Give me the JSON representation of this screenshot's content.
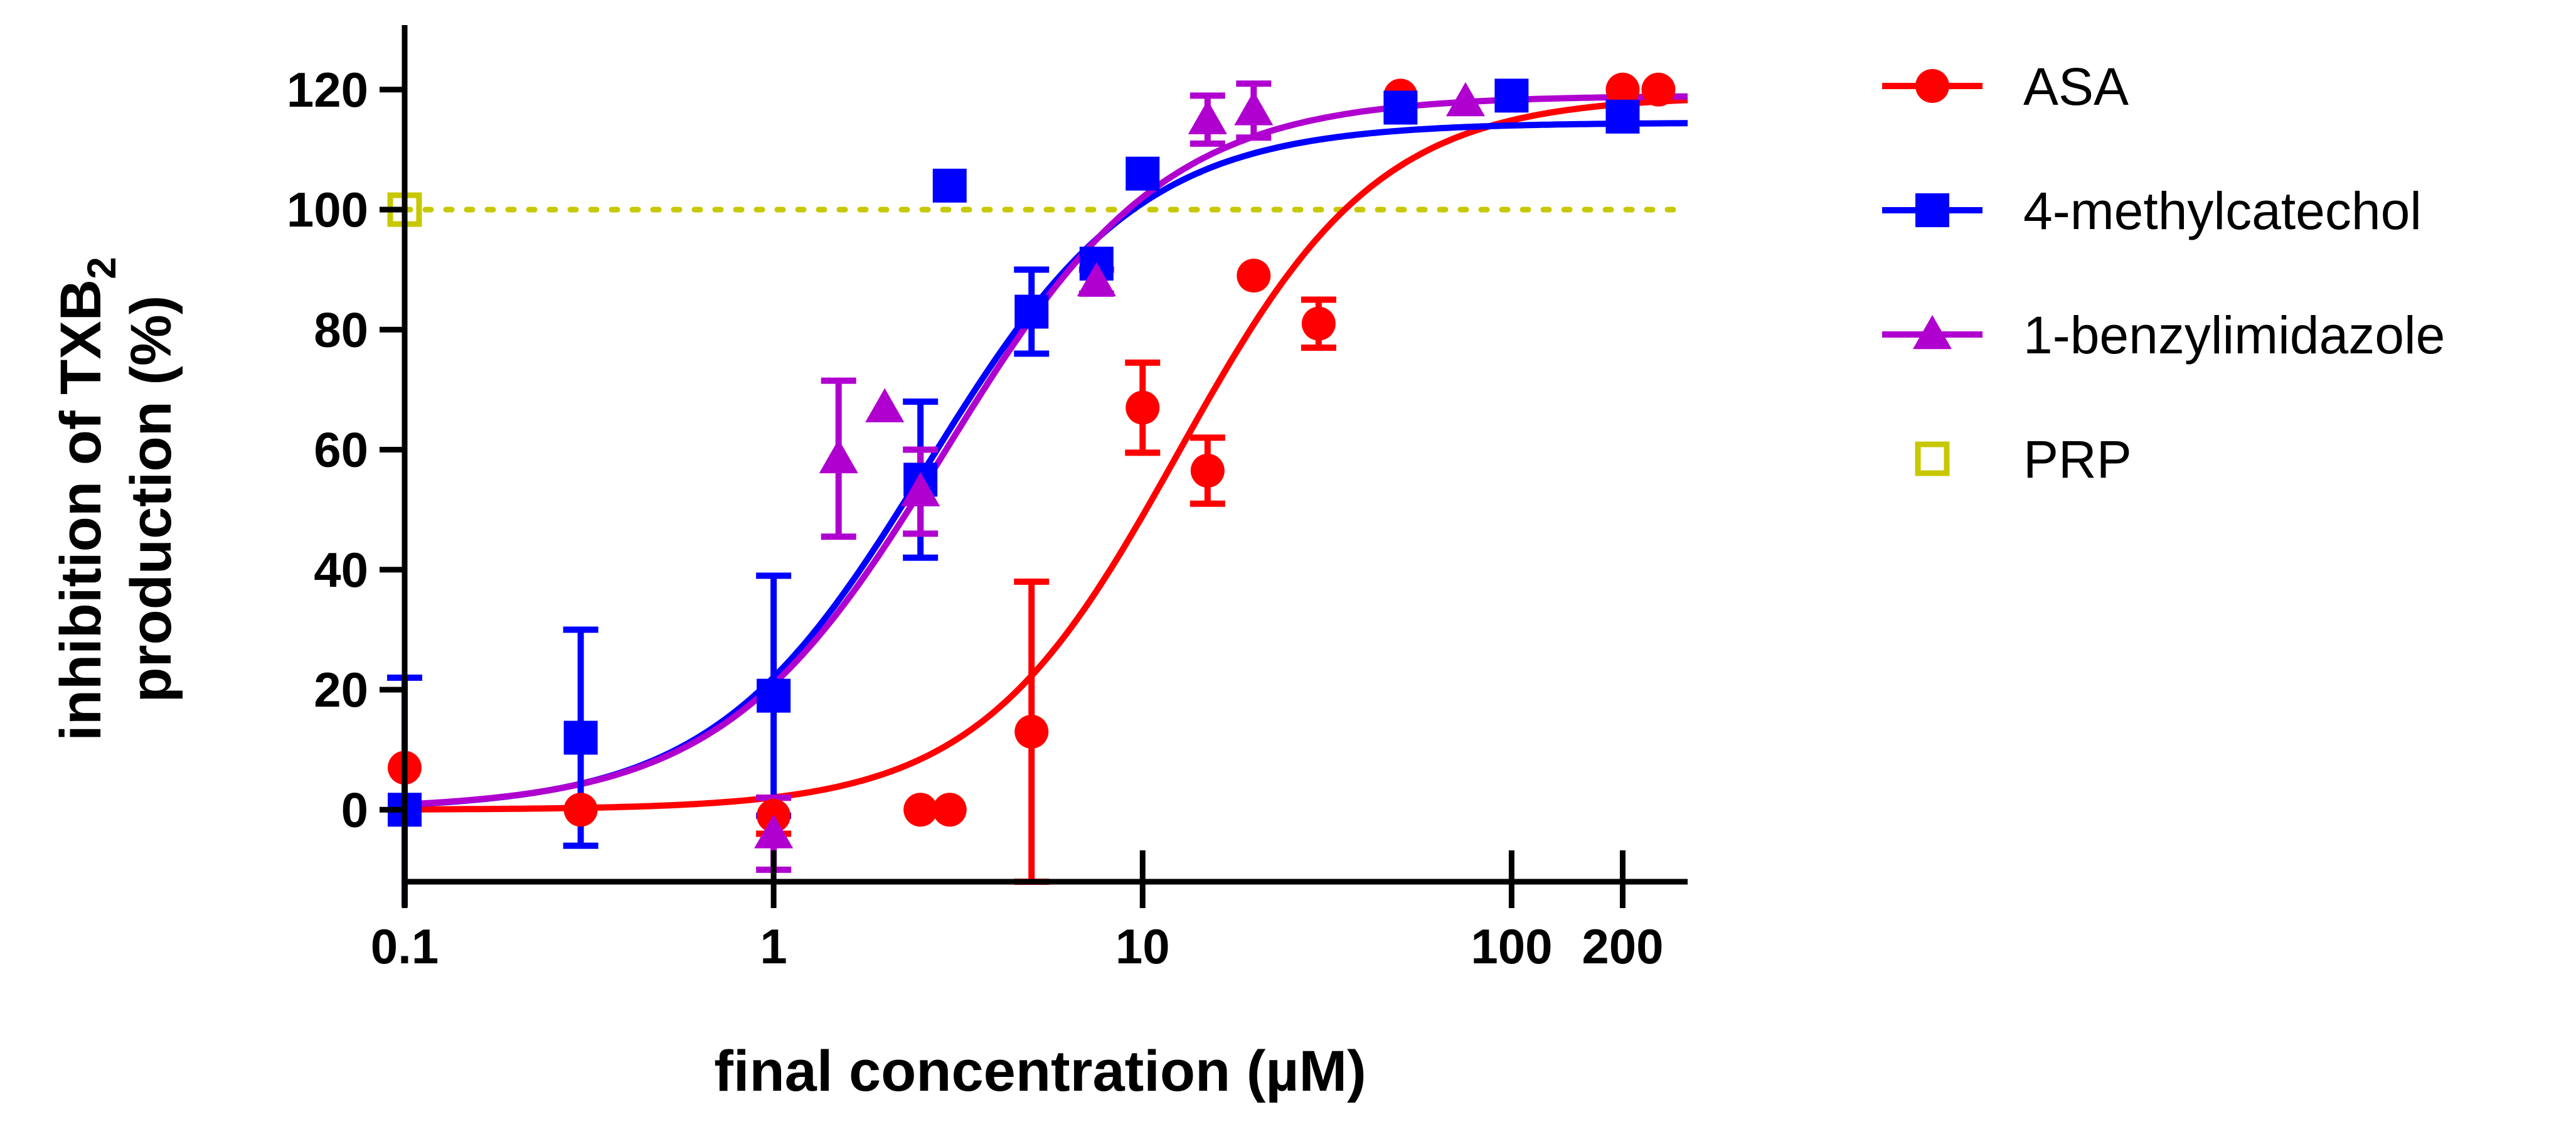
{
  "chart_data": {
    "type": "scatter",
    "xscale": "log",
    "xlim": [
      0.1,
      300
    ],
    "ylim": [
      -12,
      125
    ],
    "xticks": [
      {
        "value": 0.1,
        "label": "0.1"
      },
      {
        "value": 1,
        "label": "1"
      },
      {
        "value": 10,
        "label": "10"
      },
      {
        "value": 100,
        "label": "100"
      },
      {
        "value": 200,
        "label": "200"
      }
    ],
    "yticks": [
      {
        "value": 0,
        "label": "0"
      },
      {
        "value": 20,
        "label": "20"
      },
      {
        "value": 40,
        "label": "40"
      },
      {
        "value": 60,
        "label": "60"
      },
      {
        "value": 80,
        "label": "80"
      },
      {
        "value": 100,
        "label": "100"
      },
      {
        "value": 120,
        "label": "120"
      }
    ],
    "xlabel": "final concentration (µM)",
    "ylabel_line1": "inhibition of TXB",
    "ylabel_subscript": "2",
    "ylabel_line2": "production  (%)",
    "reference_line": {
      "y": 100,
      "color": "#c8c800",
      "style": "dotted"
    },
    "series": [
      {
        "name": "ASA",
        "color": "#ff0000",
        "marker": "circle",
        "fit": {
          "bottom": 0,
          "top": 119,
          "ec50": 12.5,
          "hill": 1.6
        },
        "points": [
          {
            "x": 0.1,
            "y": 7
          },
          {
            "x": 0.3,
            "y": 0
          },
          {
            "x": 1,
            "y": -1,
            "err": 3
          },
          {
            "x": 2.5,
            "y": 0
          },
          {
            "x": 3,
            "y": 0
          },
          {
            "x": 5,
            "y": 13,
            "err": 25
          },
          {
            "x": 10,
            "y": 67,
            "err": 7.5
          },
          {
            "x": 15,
            "y": 56.5,
            "err": 5.5
          },
          {
            "x": 20,
            "y": 89
          },
          {
            "x": 30,
            "y": 81,
            "err": 4
          },
          {
            "x": 50,
            "y": 119
          },
          {
            "x": 200,
            "y": 120
          },
          {
            "x": 250,
            "y": 120
          }
        ]
      },
      {
        "name": "4-methylcatechol",
        "color": "#0000ff",
        "marker": "square",
        "fit": {
          "bottom": 0,
          "top": 114.5,
          "ec50": 2.6,
          "hill": 1.5
        },
        "points": [
          {
            "x": 0.1,
            "y": 0,
            "err": 22
          },
          {
            "x": 0.3,
            "y": 12,
            "err": 18
          },
          {
            "x": 1,
            "y": 19,
            "err": 20
          },
          {
            "x": 2.5,
            "y": 55,
            "err": 13
          },
          {
            "x": 3,
            "y": 104
          },
          {
            "x": 5,
            "y": 83,
            "err": 7
          },
          {
            "x": 7.5,
            "y": 91
          },
          {
            "x": 10,
            "y": 106
          },
          {
            "x": 50,
            "y": 117
          },
          {
            "x": 100,
            "y": 119
          },
          {
            "x": 200,
            "y": 115.5
          }
        ]
      },
      {
        "name": "1-benzylimidazole",
        "color": "#b000d0",
        "marker": "triangle",
        "fit": {
          "bottom": 0,
          "top": 119,
          "ec50": 2.9,
          "hill": 1.45
        },
        "points": [
          {
            "x": 1,
            "y": -4,
            "err": 6
          },
          {
            "x": 1.5,
            "y": 58.5,
            "err": 13
          },
          {
            "x": 2,
            "y": 67
          },
          {
            "x": 2.5,
            "y": 53,
            "err": 7
          },
          {
            "x": 7.5,
            "y": 88,
            "err": 2
          },
          {
            "x": 15,
            "y": 115,
            "err": 4
          },
          {
            "x": 20,
            "y": 116.5,
            "err": 4.5
          },
          {
            "x": 75,
            "y": 118
          }
        ]
      },
      {
        "name": "PRP",
        "color": "#c8c800",
        "marker": "open-square",
        "points": [
          {
            "x": 0.1,
            "y": 100
          }
        ]
      }
    ],
    "legend_position": "right"
  }
}
